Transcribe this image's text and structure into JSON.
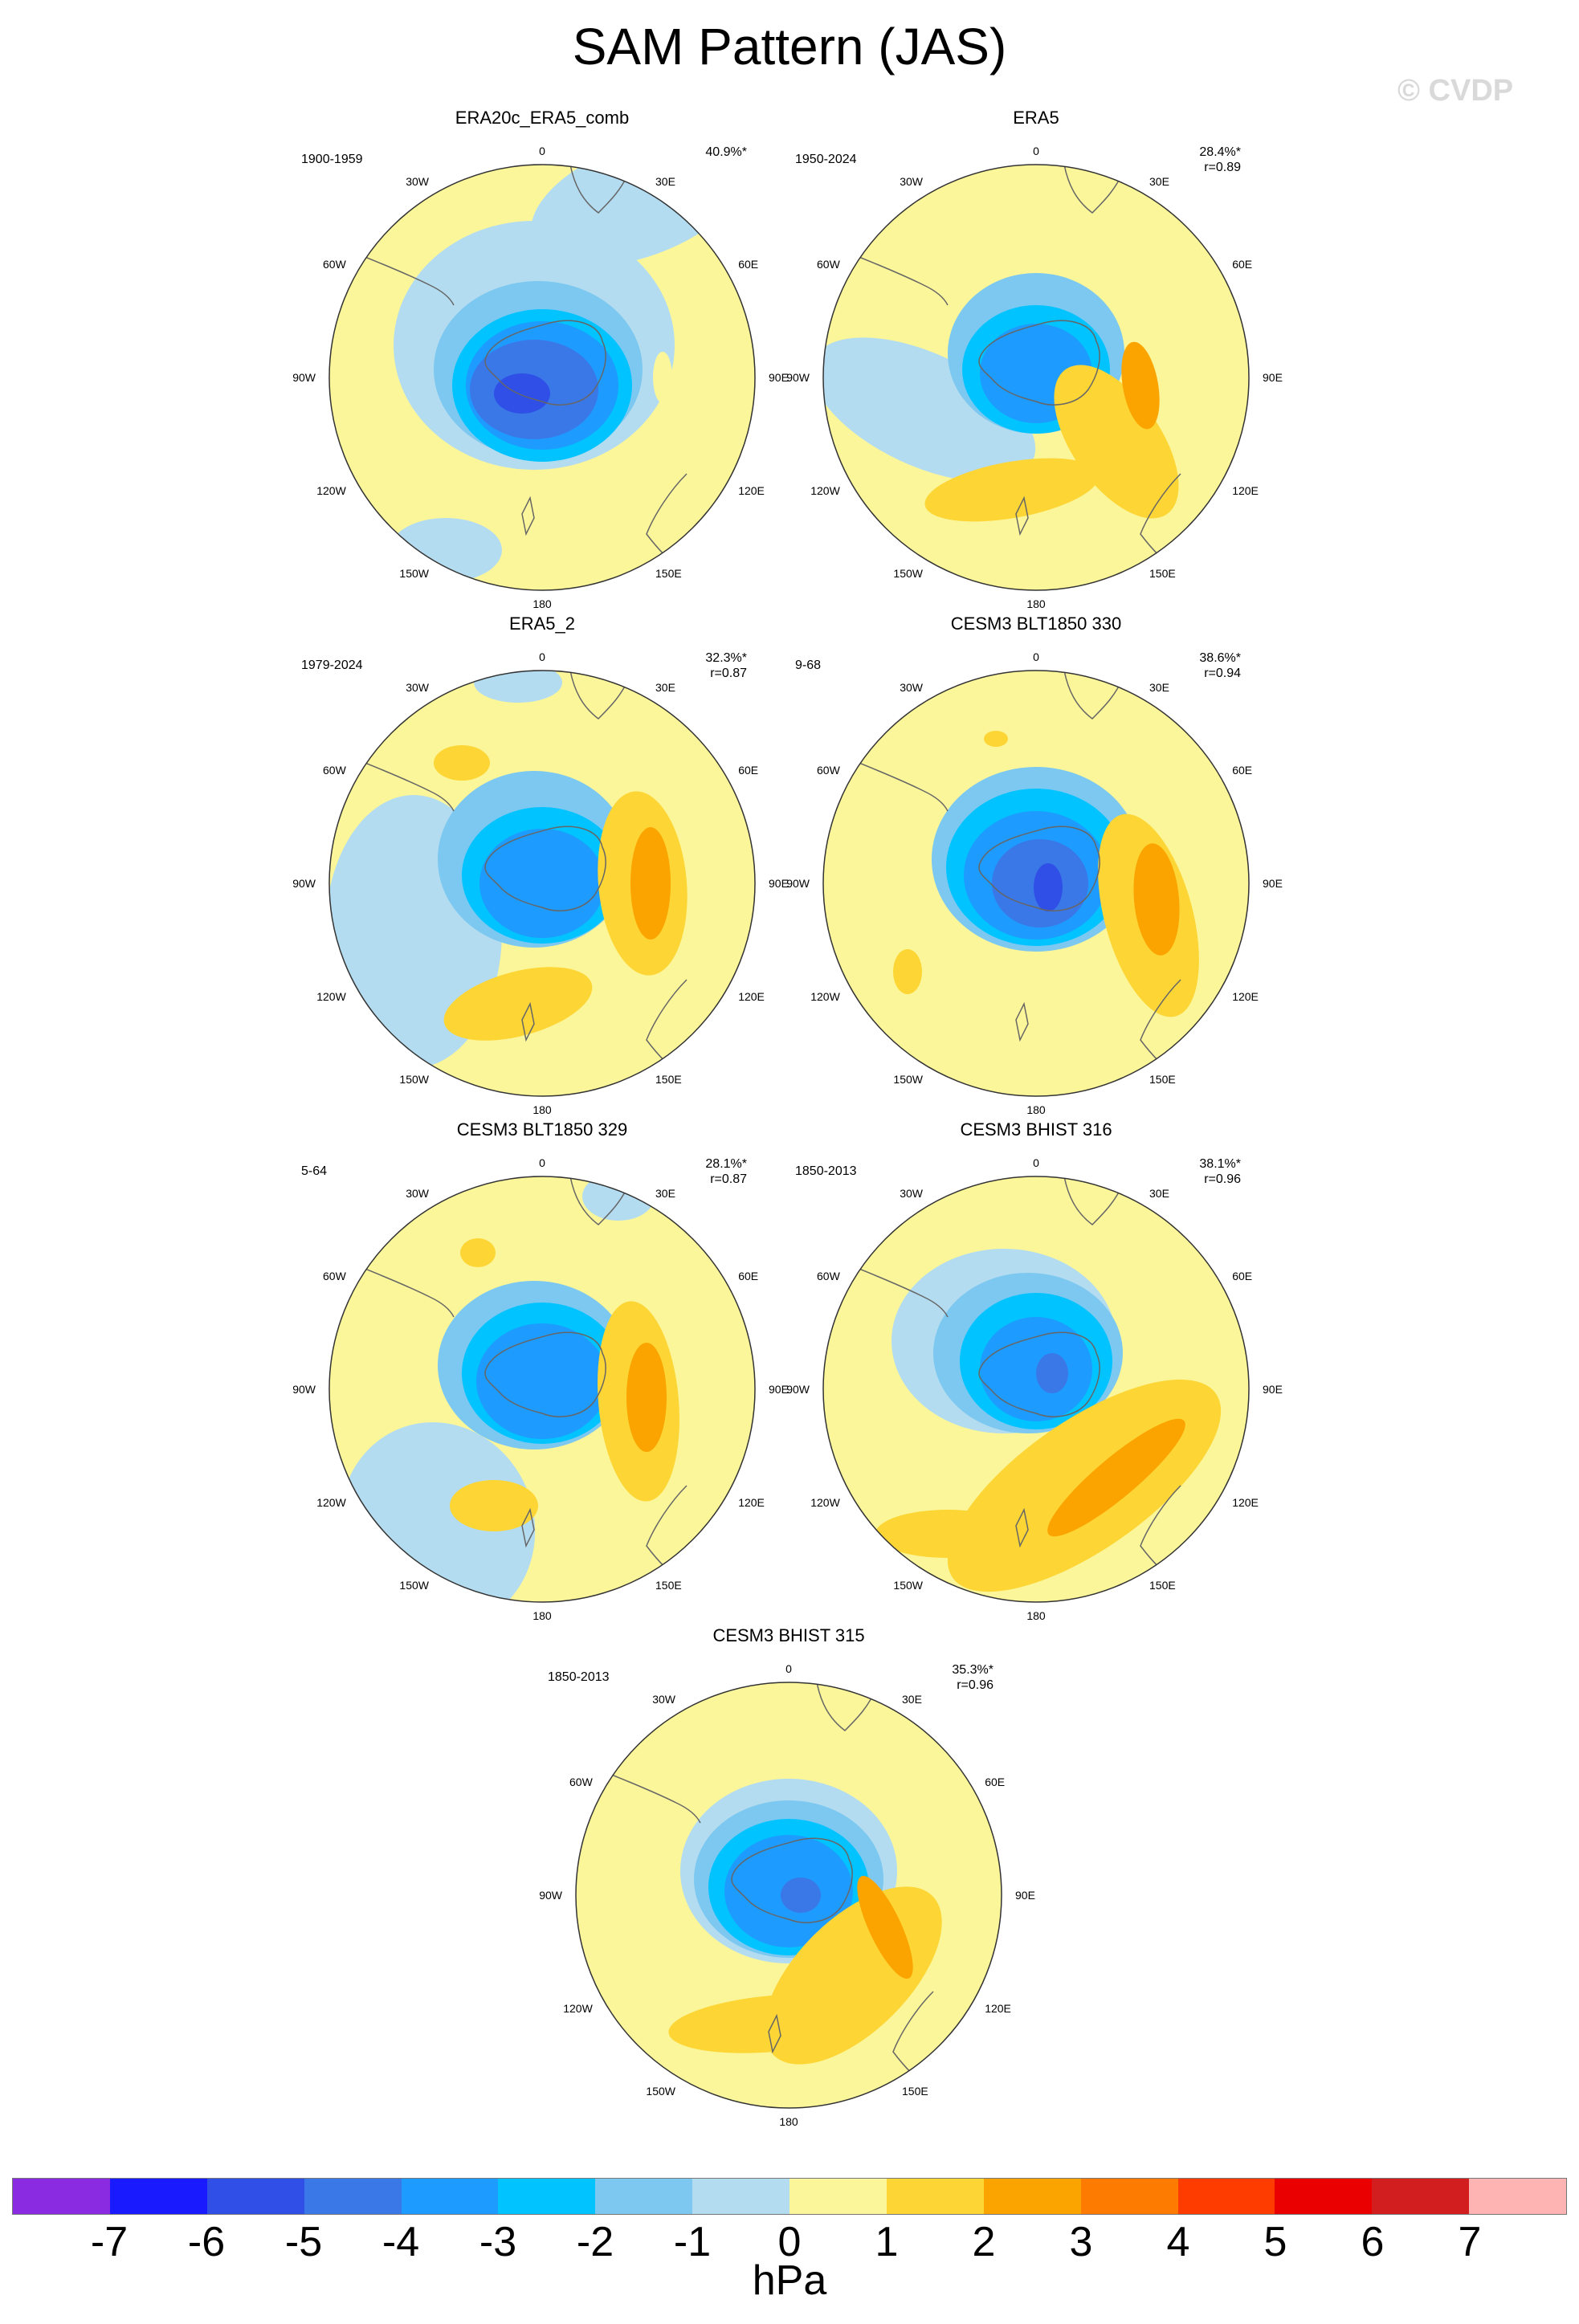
{
  "title": "SAM Pattern (JAS)",
  "copyright": "© CVDP",
  "lon_labels": [
    "0",
    "30E",
    "60E",
    "90E",
    "120E",
    "150E",
    "180",
    "150W",
    "120W",
    "90W",
    "60W",
    "30W"
  ],
  "panels": [
    {
      "name": "ERA20c_ERA5_comb",
      "period": "1900-1959",
      "variance": "40.9%*",
      "corr": ""
    },
    {
      "name": "ERA5",
      "period": "1950-2024",
      "variance": "28.4%*",
      "corr": "r=0.89"
    },
    {
      "name": "ERA5_2",
      "period": "1979-2024",
      "variance": "32.3%*",
      "corr": "r=0.87"
    },
    {
      "name": "CESM3 BLT1850 330",
      "period": "9-68",
      "variance": "38.6%*",
      "corr": "r=0.94"
    },
    {
      "name": "CESM3 BLT1850 329",
      "period": "5-64",
      "variance": "28.1%*",
      "corr": "r=0.87"
    },
    {
      "name": "CESM3 BHIST 316",
      "period": "1850-2013",
      "variance": "38.1%*",
      "corr": "r=0.96"
    },
    {
      "name": "CESM3 BHIST 315",
      "period": "1850-2013",
      "variance": "35.3%*",
      "corr": "r=0.96"
    }
  ],
  "colorbar": {
    "units": "hPa",
    "tick_labels": [
      "-7",
      "-6",
      "-5",
      "-4",
      "-3",
      "-2",
      "-1",
      "0",
      "1",
      "2",
      "3",
      "4",
      "5",
      "6",
      "7"
    ],
    "colors": [
      "#8a2be2",
      "#1a1aff",
      "#2f4fe6",
      "#3a78e8",
      "#1e9bff",
      "#00c3ff",
      "#7cc8f0",
      "#b4dcf0",
      "#fbf69a",
      "#fdd535",
      "#fba400",
      "#fc7b00",
      "#ff3c00",
      "#ea0000",
      "#d21e1e",
      "#ffb4b4"
    ]
  }
}
